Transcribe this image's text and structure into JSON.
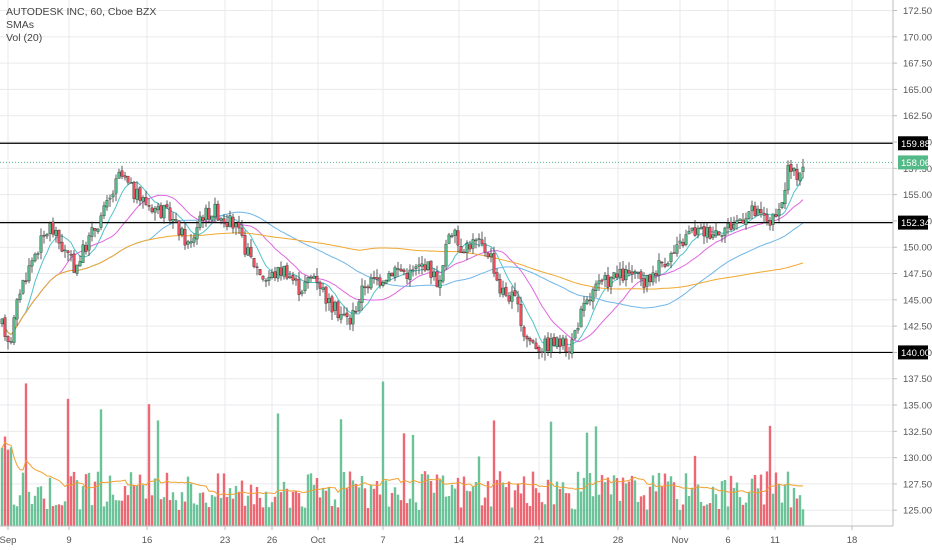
{
  "legend": {
    "symbol": "AUTODESK INC, 60, Cboe BZX",
    "study_sma": "SMAs",
    "study_vol": "Vol (20)"
  },
  "colors": {
    "up": "#53b987",
    "down": "#eb4d5c",
    "sma_fast": "#4fc3c8",
    "sma_mid": "#e066e0",
    "sma_slow": "#6fb6e8",
    "sma_long": "#f0a830",
    "vol_ma": "#f0a030",
    "grid": "#e8eaed",
    "level": "#000000",
    "last_price_tag": "#53b987"
  },
  "chart_data": {
    "type": "candlestick",
    "title": "AUTODESK INC, 60, Cboe BZX",
    "xlabel": "",
    "ylabel": "",
    "ylim": [
      123.5,
      173.5
    ],
    "y_ticks": [
      125.0,
      127.5,
      130.0,
      132.5,
      135.0,
      137.5,
      140.0,
      142.5,
      145.0,
      147.5,
      150.0,
      152.5,
      155.0,
      157.5,
      160.0,
      162.5,
      165.0,
      167.5,
      170.0,
      172.5
    ],
    "x_tick_labels": [
      "Sep",
      "9",
      "16",
      "23",
      "26",
      "Oct",
      "7",
      "14",
      "21",
      "28",
      "Nov",
      "6",
      "11",
      "18"
    ],
    "horizontal_levels": [
      159.88,
      152.34,
      140.0
    ],
    "level_labels": [
      "159.88",
      "152.34",
      "140.00"
    ],
    "last_price": 158.06,
    "last_price_label": "158.06",
    "price_anchors": [
      [
        0,
        143.0
      ],
      [
        10,
        141.0
      ],
      [
        20,
        146.0
      ],
      [
        35,
        149.5
      ],
      [
        50,
        152.0
      ],
      [
        62,
        150.0
      ],
      [
        75,
        148.0
      ],
      [
        90,
        151.0
      ],
      [
        110,
        154.5
      ],
      [
        120,
        157.0
      ],
      [
        135,
        155.0
      ],
      [
        150,
        154.0
      ],
      [
        170,
        153.0
      ],
      [
        190,
        150.0
      ],
      [
        200,
        153.0
      ],
      [
        215,
        153.5
      ],
      [
        235,
        152.0
      ],
      [
        250,
        149.0
      ],
      [
        265,
        147.0
      ],
      [
        285,
        148.0
      ],
      [
        300,
        146.0
      ],
      [
        315,
        147.5
      ],
      [
        330,
        144.5
      ],
      [
        350,
        143.0
      ],
      [
        365,
        146.5
      ],
      [
        380,
        147.0
      ],
      [
        395,
        148.0
      ],
      [
        410,
        147.5
      ],
      [
        425,
        148.5
      ],
      [
        440,
        146.5
      ],
      [
        450,
        152.0
      ],
      [
        460,
        150.0
      ],
      [
        475,
        150.5
      ],
      [
        490,
        149.5
      ],
      [
        500,
        146.0
      ],
      [
        515,
        145.0
      ],
      [
        525,
        141.5
      ],
      [
        540,
        140.5
      ],
      [
        555,
        141.0
      ],
      [
        570,
        140.5
      ],
      [
        580,
        143.5
      ],
      [
        595,
        146.0
      ],
      [
        610,
        147.0
      ],
      [
        630,
        147.5
      ],
      [
        645,
        146.5
      ],
      [
        660,
        148.5
      ],
      [
        675,
        149.5
      ],
      [
        690,
        151.5
      ],
      [
        710,
        151.5
      ],
      [
        730,
        152.0
      ],
      [
        750,
        153.5
      ],
      [
        770,
        152.5
      ],
      [
        780,
        153.0
      ],
      [
        788,
        157.5
      ],
      [
        795,
        156.8
      ],
      [
        803,
        157.8
      ]
    ],
    "volume_ylim": [
      0,
      100
    ],
    "series": [
      {
        "name": "Vol (20)",
        "kind": "volume"
      }
    ]
  }
}
